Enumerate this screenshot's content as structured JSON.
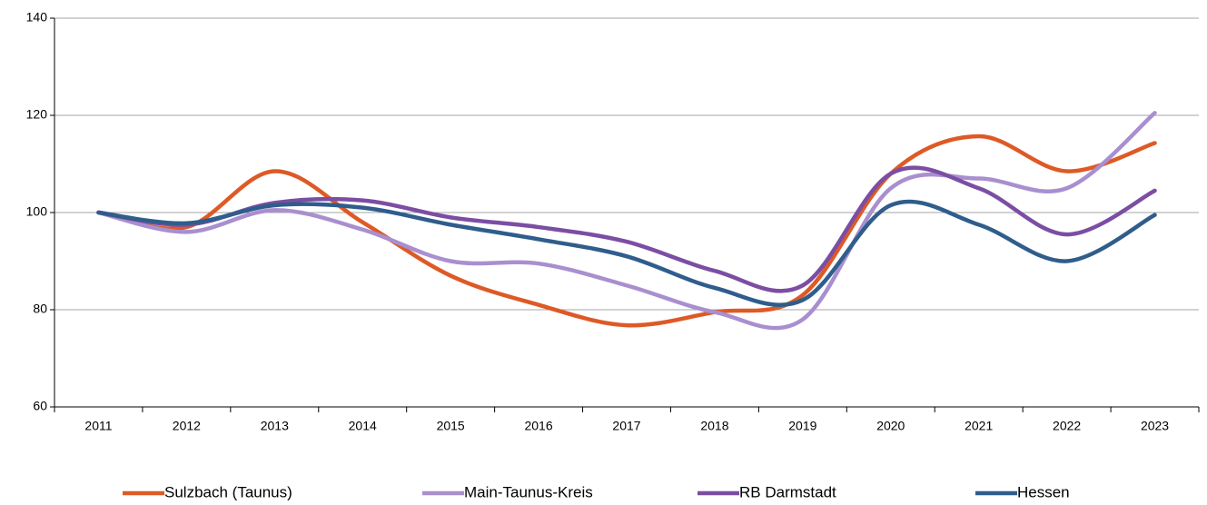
{
  "chart_data": {
    "type": "line",
    "categories": [
      "2011",
      "2012",
      "2013",
      "2014",
      "2015",
      "2016",
      "2017",
      "2018",
      "2019",
      "2020",
      "2021",
      "2022",
      "2023"
    ],
    "series": [
      {
        "name": "Sulzbach (Taunus)",
        "color": "#dd5a26",
        "values": [
          100,
          97,
          108.5,
          98,
          87,
          81,
          76.8,
          79.5,
          83,
          108,
          115.7,
          108.5,
          114.3
        ]
      },
      {
        "name": "Main-Taunus-Kreis",
        "color": "#a98fcf",
        "values": [
          100,
          96,
          100.5,
          96.5,
          90,
          89.5,
          85,
          79.5,
          78,
          105,
          107,
          105,
          120.5
        ]
      },
      {
        "name": "RB Darmstadt",
        "color": "#7b4ea3",
        "values": [
          100,
          97.5,
          102,
          102.5,
          99,
          97,
          94,
          88,
          85,
          108,
          105,
          95.5,
          104.5
        ]
      },
      {
        "name": "Hessen",
        "color": "#2f5d8c",
        "values": [
          100,
          97.8,
          101.5,
          101,
          97.5,
          94.5,
          91,
          84.5,
          82,
          101.5,
          97.5,
          90,
          99.5
        ]
      }
    ],
    "ylim": [
      60,
      140
    ],
    "yticks": [
      60,
      80,
      100,
      120,
      140
    ],
    "grid": true,
    "legend": "bottom"
  }
}
